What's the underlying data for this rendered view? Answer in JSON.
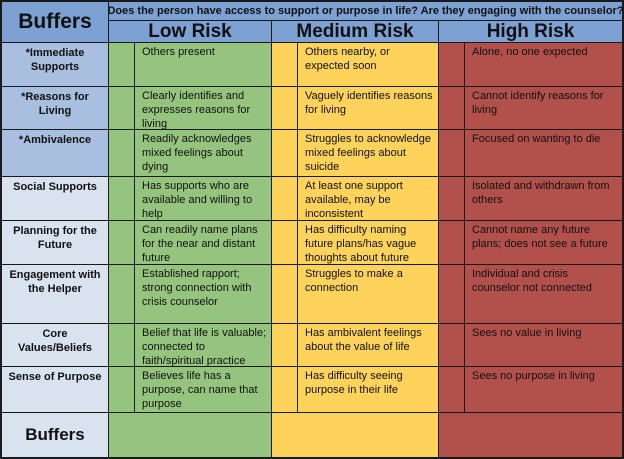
{
  "table": {
    "corner_label": "Buffers",
    "question": "Does the person have access to support or purpose in life? Are they engaging with the counselor?",
    "columns": [
      {
        "label": "Low Risk",
        "color": "#95C47E"
      },
      {
        "label": "Medium Risk",
        "color": "#FDD35C"
      },
      {
        "label": "High Risk",
        "color": "#B2514C"
      }
    ],
    "rows": [
      {
        "label": "*Immediate Supports",
        "starred": true,
        "low": "Others present",
        "medium": "Others nearby, or expected soon",
        "high": "Alone, no one expected"
      },
      {
        "label": "*Reasons for Living",
        "starred": true,
        "low": "Clearly identifies and expresses reasons for living",
        "medium": "Vaguely identifies reasons for living",
        "high": "Cannot identify reasons for living"
      },
      {
        "label": "*Ambivalence",
        "starred": true,
        "low": "Readily acknowledges mixed feelings about dying",
        "medium": "Struggles to acknowledge mixed feelings about suicide",
        "high": "Focused on wanting to die"
      },
      {
        "label": "Social Supports",
        "starred": false,
        "low": "Has supports who are available and willing to help",
        "medium": "At least one support available, may be inconsistent",
        "high": "Isolated and withdrawn from others"
      },
      {
        "label": "Planning for the Future",
        "starred": false,
        "low": "Can readily name plans for the near and distant future",
        "medium": "Has difficulty naming future plans/has vague thoughts about future",
        "high": "Cannot name any future plans; does not see a future"
      },
      {
        "label": "Engagement with the Helper",
        "starred": false,
        "low": "Established rapport; strong connection with crisis counselor",
        "medium": "Struggles to make a connection",
        "high": "Individual and crisis counselor not connected"
      },
      {
        "label": "Core Values/Beliefs",
        "starred": false,
        "low": "Belief that life is valuable; connected to faith/spiritual practice",
        "medium": "Has ambivalent feelings about the value of life",
        "high": "Sees no value in living"
      },
      {
        "label": "Sense of Purpose",
        "starred": false,
        "low": "Believes life has a purpose, can name that purpose",
        "medium": "Has difficulty seeing purpose in their life",
        "high": "Sees no purpose in living"
      }
    ],
    "footer_label": "Buffers"
  },
  "colors": {
    "header_blue": "#7EA1D4",
    "starred_label_blue": "#A9BFE0",
    "label_blue": "#D9E2EF",
    "low_green": "#95C47E",
    "medium_yellow": "#FDD35C",
    "high_red": "#B2514C",
    "border_black": "#1a1a1a"
  }
}
